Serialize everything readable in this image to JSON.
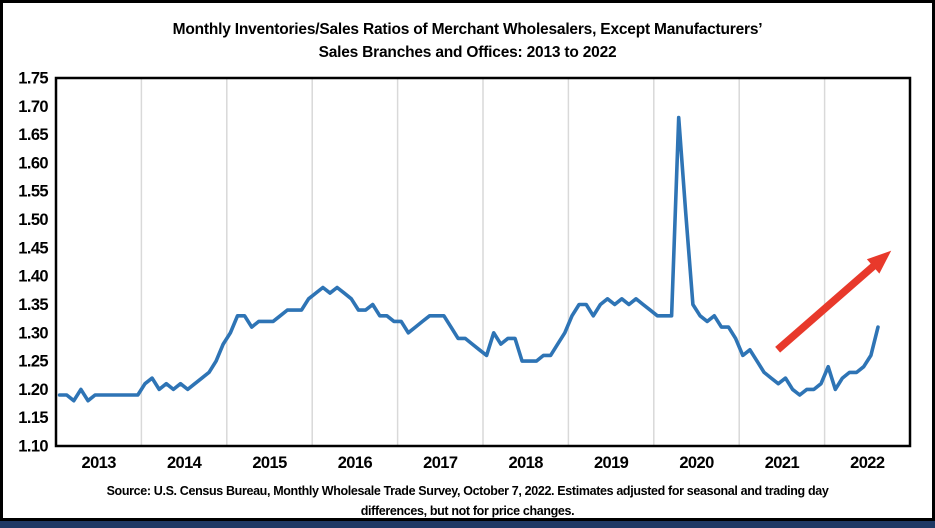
{
  "title": {
    "line1": "Monthly Inventories/Sales Ratios of Merchant Wholesalers, Except Manufacturers’",
    "line2": "Sales Branches and Offices: 2013 to 2022"
  },
  "source": {
    "line1": "Source: U.S. Census Bureau, Monthly Wholesale Trade Survey, October 7, 2022. Estimates adjusted for seasonal and trading day",
    "line2": "differences, but not for price changes."
  },
  "colors": {
    "line": "#2E74B5",
    "arrow": "#E8392B",
    "grid": "#D9D9D9",
    "frame": "#000000",
    "background": "#FFFFFF",
    "bottom_bar": "#1F3864"
  },
  "chart_data": {
    "type": "line",
    "title": "Monthly Inventories/Sales Ratios of Merchant Wholesalers, Except Manufacturers’ Sales Branches and Offices: 2013 to 2022",
    "xlabel": "",
    "ylabel": "",
    "ylim": [
      1.1,
      1.75
    ],
    "y_step": 0.05,
    "grid": "vertical-year-gridlines-only",
    "legend": "none",
    "y_tick_labels": [
      "1.75",
      "1.70",
      "1.65",
      "1.60",
      "1.55",
      "1.50",
      "1.45",
      "1.40",
      "1.35",
      "1.30",
      "1.25",
      "1.20",
      "1.15",
      "1.10"
    ],
    "x_tick_labels": [
      "2013",
      "2014",
      "2015",
      "2016",
      "2017",
      "2018",
      "2019",
      "2020",
      "2021",
      "2022"
    ],
    "series": [
      {
        "name": "Inventories/Sales ratio",
        "frequency": "monthly",
        "start_month": "2013-01",
        "end_month": "2022-08",
        "values": [
          1.19,
          1.19,
          1.18,
          1.2,
          1.18,
          1.19,
          1.19,
          1.19,
          1.19,
          1.19,
          1.19,
          1.19,
          1.21,
          1.22,
          1.2,
          1.21,
          1.2,
          1.21,
          1.2,
          1.21,
          1.22,
          1.23,
          1.25,
          1.28,
          1.3,
          1.33,
          1.33,
          1.31,
          1.32,
          1.32,
          1.32,
          1.33,
          1.34,
          1.34,
          1.34,
          1.36,
          1.37,
          1.38,
          1.37,
          1.38,
          1.37,
          1.36,
          1.34,
          1.34,
          1.35,
          1.33,
          1.33,
          1.32,
          1.32,
          1.3,
          1.31,
          1.32,
          1.33,
          1.33,
          1.33,
          1.31,
          1.29,
          1.29,
          1.28,
          1.27,
          1.26,
          1.3,
          1.28,
          1.29,
          1.29,
          1.25,
          1.25,
          1.25,
          1.26,
          1.26,
          1.28,
          1.3,
          1.33,
          1.35,
          1.35,
          1.33,
          1.35,
          1.36,
          1.35,
          1.36,
          1.35,
          1.36,
          1.35,
          1.34,
          1.33,
          1.33,
          1.33,
          1.68,
          1.51,
          1.35,
          1.33,
          1.32,
          1.33,
          1.31,
          1.31,
          1.29,
          1.26,
          1.27,
          1.25,
          1.23,
          1.22,
          1.21,
          1.22,
          1.2,
          1.19,
          1.2,
          1.2,
          1.21,
          1.24,
          1.2,
          1.22,
          1.23,
          1.23,
          1.24,
          1.26,
          1.31
        ]
      }
    ],
    "annotations": [
      {
        "type": "arrow",
        "meaning": "upward trend highlight",
        "from": {
          "x_year": 2021.45,
          "value": 1.27
        },
        "to": {
          "x_year": 2022.78,
          "value": 1.445
        }
      }
    ]
  }
}
